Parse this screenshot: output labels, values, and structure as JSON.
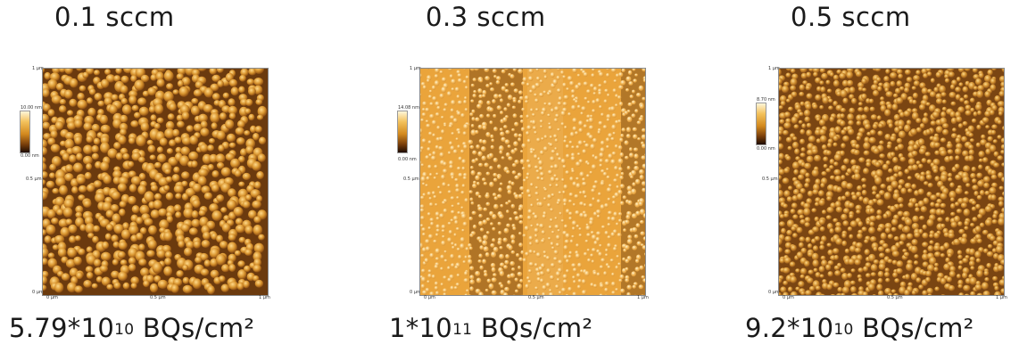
{
  "panels": [
    {
      "title": "0.1 sccm",
      "scale_top": "10.00 nm",
      "scale_bottom": "0.00 nm",
      "y_top": "1 µm",
      "y_mid": "0.5 µm",
      "y_bottom": "0 µm",
      "x_left": "0 µm",
      "x_mid": "0.5 µm",
      "x_right": "1 µm",
      "caption_base": "5.79*10",
      "caption_exp": "10",
      "caption_unit": " BQs/cm²"
    },
    {
      "title": "0.3 sccm",
      "scale_top": "14.08 nm",
      "scale_bottom": "0.00 nm",
      "y_top": "1 µm",
      "y_mid": "0.5 µm",
      "y_bottom": "0 µm",
      "x_left": "0 µm",
      "x_mid": "0.5 µm",
      "x_right": "1 µm",
      "caption_base": "1*10",
      "caption_exp": "11",
      "caption_unit": " BQs/cm²"
    },
    {
      "title": "0.5 sccm",
      "scale_top": "8.70 nm",
      "scale_bottom": "0.00 nm",
      "y_top": "1 µm",
      "y_mid": "0.5 µm",
      "y_bottom": "0 µm",
      "x_left": "0 µm",
      "x_mid": "0.5 µm",
      "x_right": "1 µm",
      "caption_base": "9.2*10",
      "caption_exp": "10",
      "caption_unit": " BQs/cm²"
    }
  ],
  "colors": {
    "afm_dark": "#5a2e08",
    "afm_mid": "#c8862c",
    "afm_light": "#ffe7a8"
  }
}
